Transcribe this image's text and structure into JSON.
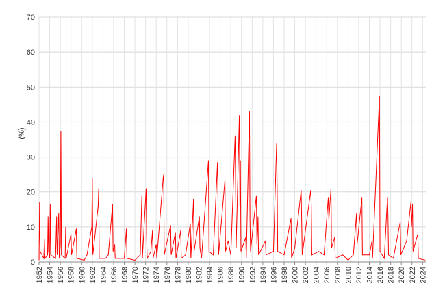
{
  "chart_data": {
    "type": "line",
    "y_label": "(%)",
    "xlim": [
      1952,
      2024.6
    ],
    "xticks": [
      1952,
      1954,
      1956,
      1958,
      1960,
      1962,
      1964,
      1966,
      1968,
      1970,
      1972,
      1974,
      1976,
      1978,
      1980,
      1982,
      1984,
      1986,
      1988,
      1990,
      1992,
      1994,
      1996,
      1998,
      2000,
      2002,
      2004,
      2006,
      2008,
      2010,
      2012,
      2014,
      2016,
      2018,
      2020,
      2022,
      2024
    ],
    "ylim": [
      0,
      70
    ],
    "yticks": [
      0,
      10,
      20,
      30,
      40,
      50,
      60,
      70
    ],
    "grid": true,
    "color": "#ff0000",
    "x": [
      1952.0,
      1952.1,
      1952.2,
      1952.9,
      1953.0,
      1953.1,
      1953.6,
      1953.7,
      1953.8,
      1954.0,
      1954.1,
      1954.2,
      1955.1,
      1955.3,
      1955.4,
      1955.7,
      1955.8,
      1956.0,
      1956.1,
      1956.2,
      1956.9,
      1957.0,
      1957.1,
      1958.0,
      1958.1,
      1959.0,
      1959.1,
      1960.5,
      1961.0,
      1961.9,
      1962.0,
      1962.1,
      1963.1,
      1963.2,
      1963.3,
      1964.5,
      1965.0,
      1965.8,
      1965.9,
      1966.2,
      1966.3,
      1968.0,
      1968.4,
      1968.5,
      1970.0,
      1971.0,
      1971.3,
      1971.4,
      1972.1,
      1972.2,
      1972.3,
      1973.0,
      1973.3,
      1973.4,
      1974.0,
      1974.1,
      1975.3,
      1975.4,
      1975.5,
      1976.7,
      1976.8,
      1977.6,
      1977.7,
      1978.6,
      1978.7,
      1979.5,
      1980.4,
      1980.5,
      1981.0,
      1981.1,
      1982.1,
      1982.2,
      1982.5,
      1983.8,
      1983.9,
      1984.7,
      1985.5,
      1985.6,
      1985.7,
      1986.9,
      1987.0,
      1987.5,
      1988.0,
      1988.8,
      1988.9,
      1989.0,
      1989.6,
      1989.7,
      1989.8,
      1989.9,
      1990.8,
      1990.9,
      1991.5,
      1991.6,
      1991.7,
      1992.8,
      1992.9,
      1993.1,
      1993.2,
      1994.5,
      1994.6,
      1996.0,
      1996.6,
      1996.7,
      1996.8,
      1998.0,
      1999.3,
      1999.4,
      2000.0,
      2001.2,
      2001.3,
      2001.4,
      2003.0,
      2003.1,
      2003.2,
      2004.5,
      2005.5,
      2006.3,
      2006.4,
      2006.8,
      2006.9,
      2007.5,
      2007.6,
      2009.0,
      2010.0,
      2011.0,
      2011.6,
      2011.7,
      2012.6,
      2012.7,
      2014.0,
      2014.5,
      2014.6,
      2015.9,
      2016.0,
      2016.8,
      2017.4,
      2017.5,
      2017.6,
      2018.5,
      2019.8,
      2019.9,
      2021.0,
      2021.8,
      2021.9,
      2022.1,
      2022.2,
      2023.1,
      2023.2,
      2024.5
    ],
    "values": [
      0.5,
      17,
      3,
      1,
      6.5,
      1,
      2,
      13,
      3,
      1,
      16.5,
      2,
      1,
      13,
      2,
      14,
      1,
      5,
      37.5,
      2,
      1,
      10,
      1,
      8,
      2,
      9.5,
      1,
      0.5,
      2,
      10,
      24,
      2,
      16,
      21,
      1,
      1,
      2,
      16.5,
      3,
      5,
      1,
      1,
      9.5,
      1,
      0.5,
      2,
      19,
      1,
      21,
      7,
      1,
      3,
      9,
      1,
      5,
      1,
      24,
      25,
      2,
      10.5,
      2,
      8.5,
      1,
      9,
      1,
      2,
      11,
      1,
      18,
      3,
      13,
      4,
      1,
      29,
      3,
      2,
      28.5,
      17,
      2,
      23.5,
      3,
      6,
      2,
      36,
      22,
      4,
      42,
      16,
      29,
      3,
      7,
      1,
      43,
      12,
      3,
      19,
      5,
      13,
      2,
      6,
      2,
      3,
      34,
      21,
      3,
      2,
      12.5,
      1,
      4,
      20.5,
      12,
      2,
      20.5,
      16,
      2,
      3,
      2,
      18.5,
      12,
      21,
      4,
      7,
      1,
      2,
      0.5,
      2,
      14,
      5,
      18.5,
      2,
      2,
      6,
      1,
      47.5,
      3,
      1,
      18.5,
      13,
      2,
      1,
      11.5,
      2,
      6,
      17,
      10,
      16.5,
      3,
      8,
      1,
      0.5
    ]
  }
}
